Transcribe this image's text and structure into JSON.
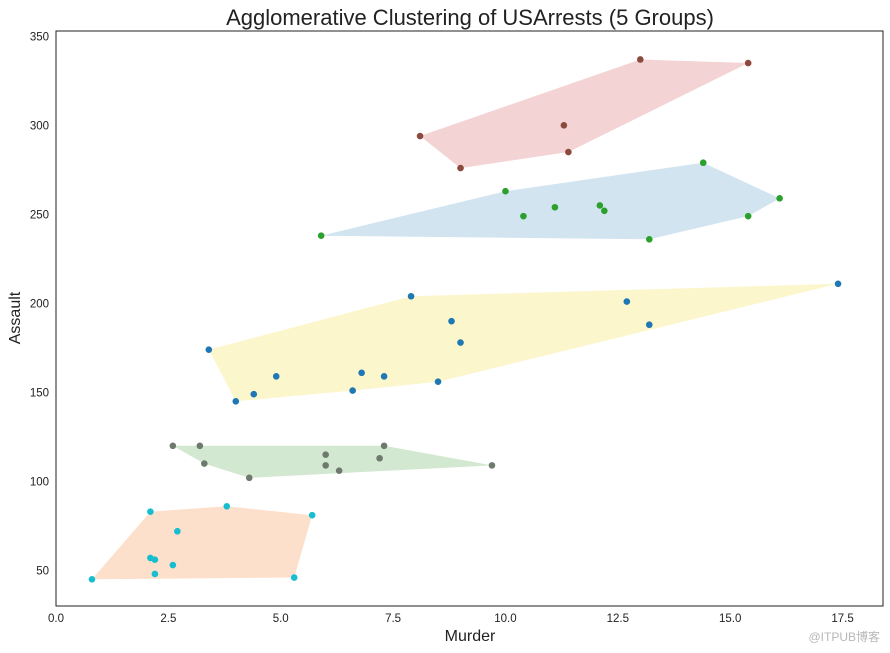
{
  "chart_data": {
    "type": "scatter",
    "title": "Agglomerative Clustering of USArrests (5 Groups)",
    "xlabel": "Murder",
    "ylabel": "Assault",
    "xlim": [
      0,
      18.4
    ],
    "ylim": [
      30,
      353
    ],
    "x_ticks": [
      0.0,
      2.5,
      5.0,
      7.5,
      10.0,
      12.5,
      15.0,
      17.5
    ],
    "x_tick_labels": [
      "0.0",
      "2.5",
      "5.0",
      "7.5",
      "10.0",
      "12.5",
      "15.0",
      "17.5"
    ],
    "y_ticks": [
      50,
      100,
      150,
      200,
      250,
      300,
      350
    ],
    "y_tick_labels": [
      "50",
      "100",
      "150",
      "200",
      "250",
      "300",
      "350"
    ],
    "grid": false,
    "legend": "none",
    "series": [
      {
        "color": "#8c4a3f",
        "hull_color": "#f4d3d4",
        "points": [
          [
            8.1,
            294
          ],
          [
            9.0,
            276
          ],
          [
            11.3,
            300
          ],
          [
            11.4,
            285
          ],
          [
            13.0,
            337
          ],
          [
            15.4,
            335
          ]
        ]
      },
      {
        "color": "#2ca02c",
        "hull_color": "#d2e4f0",
        "points": [
          [
            5.9,
            238
          ],
          [
            10.0,
            263
          ],
          [
            10.4,
            249
          ],
          [
            11.1,
            254
          ],
          [
            12.1,
            255
          ],
          [
            12.2,
            252
          ],
          [
            13.2,
            236
          ],
          [
            14.4,
            279
          ],
          [
            15.4,
            249
          ],
          [
            16.1,
            259
          ]
        ]
      },
      {
        "color": "#1f77b4",
        "hull_color": "#fcf6cc",
        "points": [
          [
            3.4,
            174
          ],
          [
            4.0,
            145
          ],
          [
            4.4,
            149
          ],
          [
            4.9,
            159
          ],
          [
            6.6,
            151
          ],
          [
            6.8,
            161
          ],
          [
            7.3,
            159
          ],
          [
            7.9,
            204
          ],
          [
            8.5,
            156
          ],
          [
            8.8,
            190
          ],
          [
            9.0,
            178
          ],
          [
            12.7,
            201
          ],
          [
            13.2,
            188
          ],
          [
            17.4,
            211
          ]
        ]
      },
      {
        "color": "#6e7a6e",
        "hull_color": "#d3e8d1",
        "points": [
          [
            2.6,
            120
          ],
          [
            3.2,
            120
          ],
          [
            3.3,
            110
          ],
          [
            4.3,
            102
          ],
          [
            6.0,
            115
          ],
          [
            6.0,
            109
          ],
          [
            6.3,
            106
          ],
          [
            7.2,
            113
          ],
          [
            7.3,
            120
          ],
          [
            9.7,
            109
          ]
        ]
      },
      {
        "color": "#17becf",
        "hull_color": "#fce0cc",
        "points": [
          [
            0.8,
            45
          ],
          [
            2.1,
            83
          ],
          [
            2.1,
            57
          ],
          [
            2.2,
            56
          ],
          [
            2.2,
            48
          ],
          [
            2.6,
            53
          ],
          [
            2.7,
            72
          ],
          [
            3.8,
            86
          ],
          [
            5.3,
            46
          ],
          [
            5.7,
            81
          ]
        ]
      }
    ]
  },
  "watermark": "@ITPUB博客"
}
